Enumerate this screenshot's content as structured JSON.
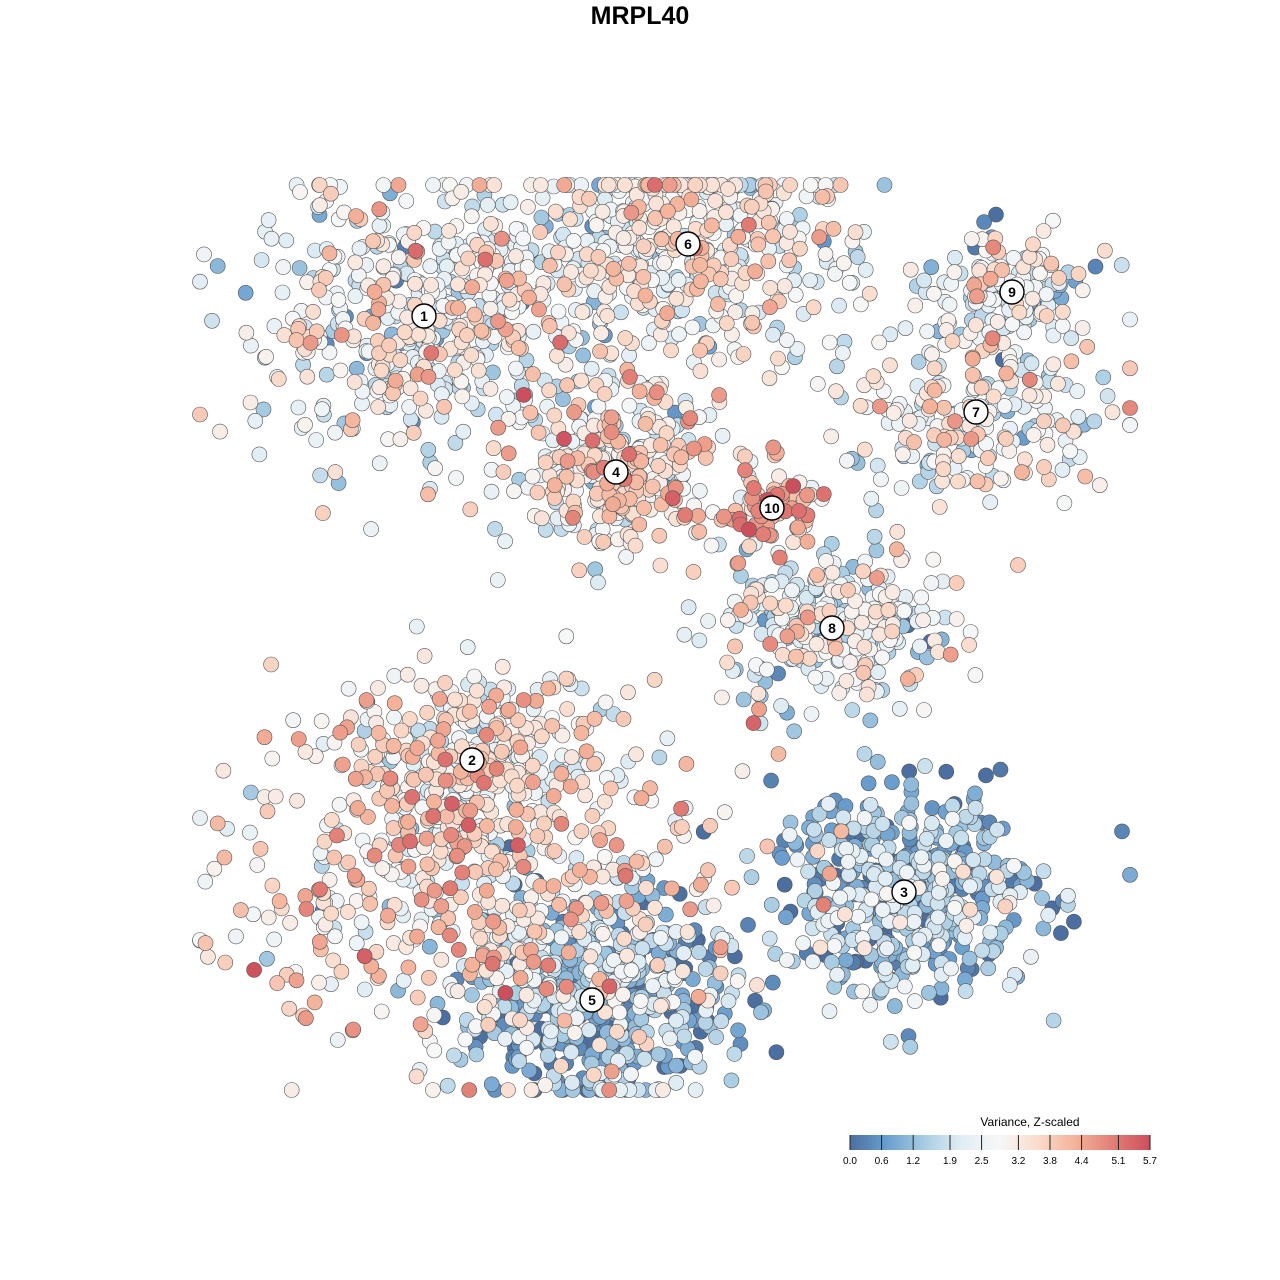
{
  "chart_data": {
    "type": "scatter",
    "title": "MRPL40",
    "xlabel": "",
    "ylabel": "",
    "grid": false,
    "legend_position": "bottom-right",
    "colorbar": {
      "title": "Variance, Z-scaled",
      "ticks": [
        "0.0",
        "0.6",
        "1.2",
        "1.9",
        "2.5",
        "3.2",
        "3.8",
        "4.4",
        "5.1",
        "5.7"
      ],
      "range": [
        0.0,
        5.7
      ],
      "palette": [
        "#4a6fa0",
        "#6b9fcf",
        "#a9cde3",
        "#e2eef5",
        "#f7f7f7",
        "#fadccd",
        "#f4b29a",
        "#e27f76",
        "#cc4f5d"
      ]
    },
    "clusters": [
      {
        "label": "1",
        "x": -1.8,
        "y": 2.7,
        "spread": 1.3,
        "n": 560,
        "level": 2.6
      },
      {
        "label": "2",
        "x": -1.4,
        "y": -1.0,
        "spread": 0.9,
        "n": 260,
        "level": 2.9
      },
      {
        "label": "3",
        "x": 2.2,
        "y": -2.1,
        "spread": 1.0,
        "n": 520,
        "level": 1.2
      },
      {
        "label": "4",
        "x": -0.2,
        "y": 1.4,
        "spread": 0.8,
        "n": 320,
        "level": 3.1
      },
      {
        "label": "5",
        "x": -0.4,
        "y": -3.0,
        "spread": 1.0,
        "n": 560,
        "level": 1.1
      },
      {
        "label": "6",
        "x": 0.4,
        "y": 3.3,
        "spread": 1.2,
        "n": 480,
        "level": 2.8
      },
      {
        "label": "7",
        "x": 2.8,
        "y": 1.9,
        "spread": 1.0,
        "n": 240,
        "level": 2.7
      },
      {
        "label": "8",
        "x": 1.6,
        "y": 0.1,
        "spread": 0.8,
        "n": 300,
        "level": 2.5
      },
      {
        "label": "9",
        "x": 3.1,
        "y": 2.9,
        "spread": 0.6,
        "n": 140,
        "level": 2.4
      },
      {
        "label": "10",
        "x": 1.1,
        "y": 1.1,
        "spread": 0.4,
        "n": 80,
        "level": 4.0
      },
      {
        "label": "",
        "x": -1.3,
        "y": -2.0,
        "spread": 1.8,
        "n": 560,
        "level": 3.3
      }
    ]
  }
}
